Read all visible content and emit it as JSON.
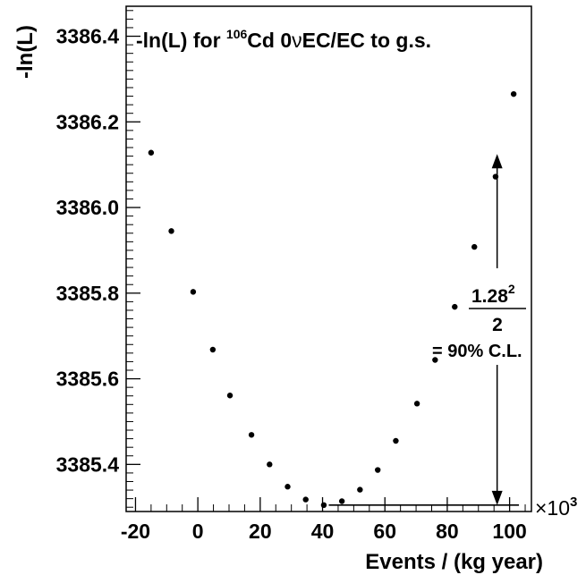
{
  "chart_data": {
    "type": "scatter",
    "title": {
      "prefix": "-ln(L) for ",
      "isotope_mass": "106",
      "suffix_before_nu": "Cd 0",
      "nu": "ν",
      "suffix": "EC/EC to g.s."
    },
    "ylabel": "-ln(L)",
    "xlabel": "Events / (kg year)",
    "x_multiplier": {
      "symbol": "×10",
      "exponent": "3"
    },
    "xlim": [
      -23,
      107
    ],
    "ylim": [
      3385.29,
      3386.47
    ],
    "x_ticks": [
      -20,
      0,
      20,
      40,
      60,
      80,
      100
    ],
    "x_tick_labels": [
      "-20",
      "0",
      "20",
      "40",
      "60",
      "80",
      "100"
    ],
    "y_ticks": [
      3385.4,
      3385.6,
      3385.8,
      3386.0,
      3386.2,
      3386.4
    ],
    "y_tick_labels": [
      "3385.4",
      "3385.6",
      "3385.8",
      "3386.0",
      "3386.2",
      "3386.4"
    ],
    "points": [
      {
        "x": -15,
        "y": 3386.128
      },
      {
        "x": -8.5,
        "y": 3385.945
      },
      {
        "x": -1.5,
        "y": 3385.803
      },
      {
        "x": 4.8,
        "y": 3385.668
      },
      {
        "x": 10.3,
        "y": 3385.561
      },
      {
        "x": 17.2,
        "y": 3385.469
      },
      {
        "x": 23,
        "y": 3385.4
      },
      {
        "x": 28.8,
        "y": 3385.348
      },
      {
        "x": 34.6,
        "y": 3385.318
      },
      {
        "x": 40.4,
        "y": 3385.305
      },
      {
        "x": 46.2,
        "y": 3385.314
      },
      {
        "x": 52,
        "y": 3385.341
      },
      {
        "x": 57.7,
        "y": 3385.387
      },
      {
        "x": 63.5,
        "y": 3385.455
      },
      {
        "x": 70.3,
        "y": 3385.542
      },
      {
        "x": 76.1,
        "y": 3385.644
      },
      {
        "x": 82.4,
        "y": 3385.768
      },
      {
        "x": 88.7,
        "y": 3385.908
      },
      {
        "x": 95.5,
        "y": 3386.072
      },
      {
        "x": 101.3,
        "y": 3386.265
      }
    ],
    "annotation": {
      "baseline_x": [
        42,
        103
      ],
      "baseline_y": 3385.305,
      "arrow_x": 96,
      "arrow_y": [
        3385.305,
        3386.125
      ],
      "fraction_numerator": "1.28",
      "fraction_exponent": "2",
      "fraction_denominator": "2",
      "cl_text": "= 90% C.L."
    },
    "grid": false,
    "legend": "none"
  }
}
